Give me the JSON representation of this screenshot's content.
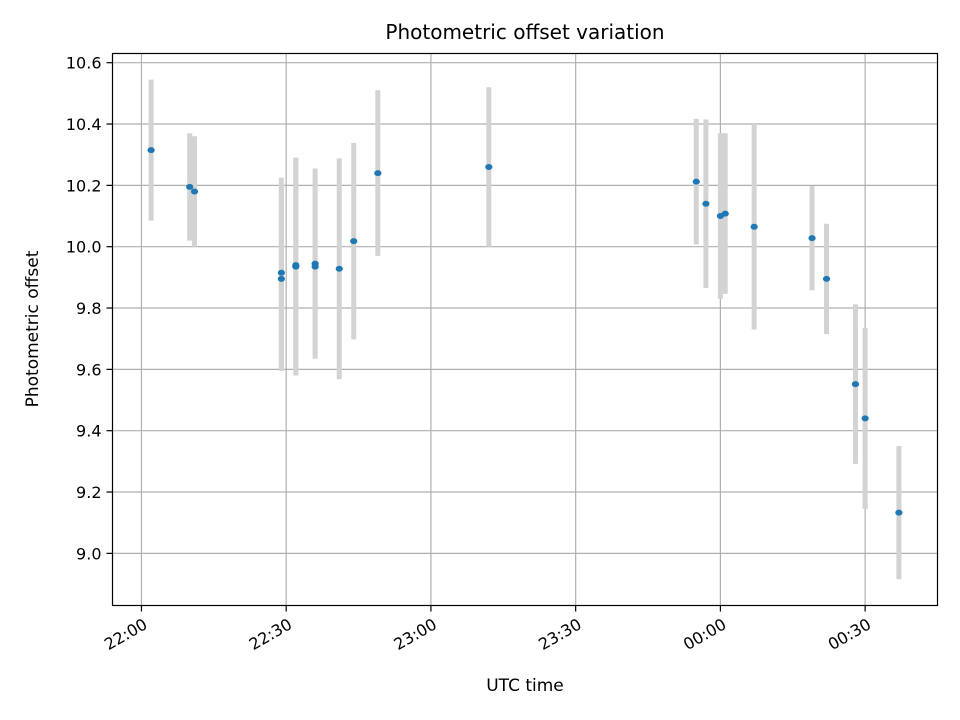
{
  "chart_data": {
    "type": "scatter",
    "title": "Photometric offset variation",
    "xlabel": "UTC time",
    "ylabel": "Photometric offset",
    "x_unit": "minutes",
    "xlim": [
      "21:54",
      "00:45"
    ],
    "ylim": [
      8.83,
      10.63
    ],
    "x_ticks": [
      {
        "value": "22:00",
        "label": "22:00"
      },
      {
        "value": "22:30",
        "label": "22:30"
      },
      {
        "value": "23:00",
        "label": "23:00"
      },
      {
        "value": "23:30",
        "label": "23:30"
      },
      {
        "value": "00:00",
        "label": "00:00"
      },
      {
        "value": "00:30",
        "label": "00:30"
      }
    ],
    "y_ticks": [
      9.0,
      9.2,
      9.4,
      9.6,
      9.8,
      10.0,
      10.2,
      10.4,
      10.6
    ],
    "grid": true,
    "legend": "none",
    "colors": {
      "point": "#1f77b4",
      "errorbar": "#d3d3d3",
      "grid": "#b0b0b0"
    },
    "points": [
      {
        "x": "22:02",
        "y": 10.315,
        "err": 0.23
      },
      {
        "x": "22:10",
        "y": 10.195,
        "err": 0.175
      },
      {
        "x": "22:11",
        "y": 10.18,
        "err": 0.18
      },
      {
        "x": "22:29",
        "y": 9.915,
        "err": 0.31
      },
      {
        "x": "22:29",
        "y": 9.895,
        "err": 0.3
      },
      {
        "x": "22:32",
        "y": 9.935,
        "err": 0.355
      },
      {
        "x": "22:32",
        "y": 9.94,
        "err": 0.35
      },
      {
        "x": "22:36",
        "y": 9.945,
        "err": 0.31
      },
      {
        "x": "22:36",
        "y": 9.935,
        "err": 0.29
      },
      {
        "x": "22:41",
        "y": 9.928,
        "err": 0.36
      },
      {
        "x": "22:44",
        "y": 10.018,
        "err": 0.32
      },
      {
        "x": "22:49",
        "y": 10.24,
        "err": 0.27
      },
      {
        "x": "23:12",
        "y": 10.26,
        "err": 0.26
      },
      {
        "x": "23:55",
        "y": 10.212,
        "err": 0.205
      },
      {
        "x": "23:57",
        "y": 10.14,
        "err": 0.275
      },
      {
        "x": "00:00",
        "y": 10.1,
        "err": 0.27
      },
      {
        "x": "00:01",
        "y": 10.108,
        "err": 0.262
      },
      {
        "x": "00:07",
        "y": 10.065,
        "err": 0.335
      },
      {
        "x": "00:19",
        "y": 10.028,
        "err": 0.17
      },
      {
        "x": "00:22",
        "y": 9.895,
        "err": 0.18
      },
      {
        "x": "00:28",
        "y": 9.552,
        "err": 0.26
      },
      {
        "x": "00:30",
        "y": 9.44,
        "err": 0.295
      },
      {
        "x": "00:37",
        "y": 9.133,
        "err": 0.217
      }
    ]
  }
}
